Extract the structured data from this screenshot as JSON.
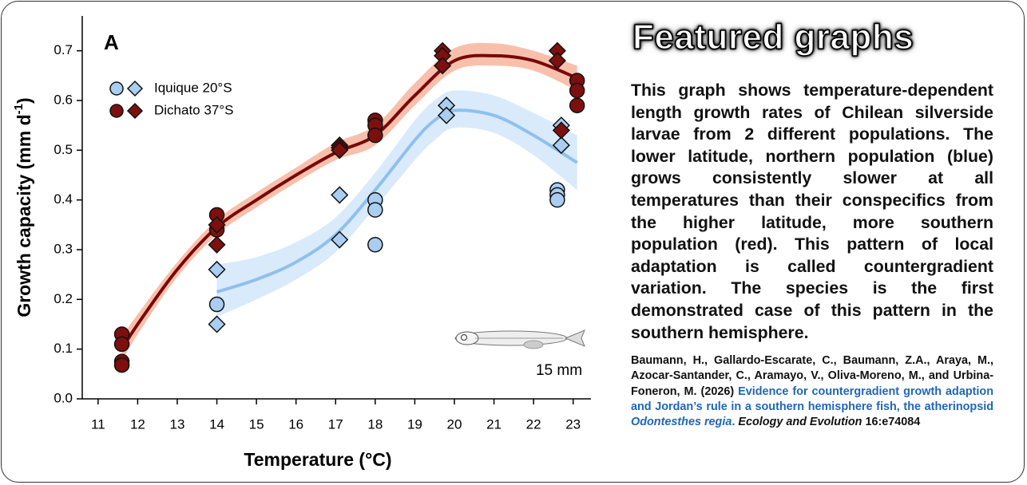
{
  "chart_data": {
    "type": "scatter",
    "panel_label": "A",
    "x_label": "Temperature (°C)",
    "y_label": {
      "text": "Growth capacity (mm d",
      "superscript": "-1",
      "closing": ")"
    },
    "xlim": [
      10.6,
      23.45
    ],
    "xticks": [
      11,
      12,
      13,
      14,
      15,
      16,
      17,
      18,
      19,
      20,
      21,
      22,
      23
    ],
    "ylim": [
      0,
      0.77
    ],
    "yticks": [
      {
        "value": 0,
        "label": "0.0"
      },
      0.1,
      0.2,
      0.3,
      0.4,
      0.5,
      0.6,
      0.7
    ],
    "annotation": "15 mm",
    "series": [
      {
        "name": "Iquique 20°S",
        "color": "#a9cef2",
        "line_color": "#8fc0ee",
        "band_color": "#d5e8fb",
        "circles": {
          "x": [
            14,
            18,
            18,
            18,
            22.6,
            22.6,
            22.6
          ],
          "values": [
            0.19,
            0.4,
            0.38,
            0.31,
            0.42,
            0.41,
            0.4
          ]
        },
        "diamonds": {
          "x": [
            14,
            14,
            17.1,
            17.1,
            19.8,
            19.8,
            22.7,
            22.7
          ],
          "values": [
            0.26,
            0.15,
            0.41,
            0.32,
            0.59,
            0.57,
            0.55,
            0.51
          ]
        },
        "fit": {
          "x": [
            14,
            15,
            16,
            17,
            18,
            19,
            19.5,
            20,
            21,
            22,
            23.1
          ],
          "values": [
            0.215,
            0.24,
            0.275,
            0.33,
            0.42,
            0.52,
            0.56,
            0.58,
            0.57,
            0.53,
            0.475
          ],
          "lower": [
            0.165,
            0.2,
            0.24,
            0.295,
            0.385,
            0.48,
            0.52,
            0.545,
            0.535,
            0.49,
            0.42
          ],
          "upper": [
            0.27,
            0.285,
            0.315,
            0.365,
            0.455,
            0.56,
            0.6,
            0.62,
            0.61,
            0.575,
            0.53
          ]
        }
      },
      {
        "name": "Dichato 37°S",
        "color": "#7e0f0f",
        "line_color": "#7a0808",
        "band_color": "#f7b9a3",
        "circles": {
          "x": [
            11.6,
            11.6,
            11.6,
            11.6,
            14,
            14,
            18,
            18,
            18,
            23.1,
            23.1,
            23.1
          ],
          "values": [
            0.13,
            0.11,
            0.075,
            0.068,
            0.37,
            0.34,
            0.56,
            0.55,
            0.53,
            0.64,
            0.62,
            0.59
          ]
        },
        "diamonds": {
          "x": [
            14,
            14,
            17.1,
            17.1,
            17.1,
            19.7,
            19.7,
            19.7,
            22.6,
            22.6,
            22.7
          ],
          "values": [
            0.35,
            0.31,
            0.51,
            0.505,
            0.5,
            0.7,
            0.69,
            0.67,
            0.7,
            0.68,
            0.54
          ]
        },
        "fit": {
          "x": [
            11.6,
            12,
            13,
            14,
            15,
            16,
            17,
            18,
            19,
            20,
            21,
            22,
            23.1
          ],
          "values": [
            0.1,
            0.15,
            0.26,
            0.345,
            0.4,
            0.45,
            0.495,
            0.53,
            0.61,
            0.68,
            0.69,
            0.68,
            0.645
          ],
          "lower": [
            0.075,
            0.13,
            0.245,
            0.33,
            0.385,
            0.435,
            0.48,
            0.51,
            0.59,
            0.66,
            0.67,
            0.66,
            0.62
          ],
          "upper": [
            0.125,
            0.17,
            0.275,
            0.36,
            0.415,
            0.465,
            0.515,
            0.55,
            0.635,
            0.705,
            0.715,
            0.7,
            0.67
          ]
        }
      }
    ]
  },
  "panel": {
    "title": "Featured graphs",
    "body": "This graph shows temperature-dependent length growth rates of Chilean silverside larvae from 2 different populations. The lower latitude, northern population (blue) grows consistently slower at all temperatures than their conspecifics from the higher latitude, more southern population (red). This pattern of local adaptation is called countergradient variation. The species is the first demonstrated case of this pattern in the southern hemisphere.",
    "citation": {
      "authors": "Baumann, H., Gallardo-Escarate, C., Baumann, Z.A., Araya, M., Azocar-Santander, C., Aramayo, V., Oliva-Moreno, M., and Urbina-Foneron, M. (2026)",
      "link": "Evidence for countergradient growth adaption and Jordan’s rule in a southern hemisphere fish, the atherinopsid",
      "species": "Odontesthes regia",
      "period": ".",
      "journal": "Ecology and Evolution",
      "volume": "16:e74084"
    }
  }
}
